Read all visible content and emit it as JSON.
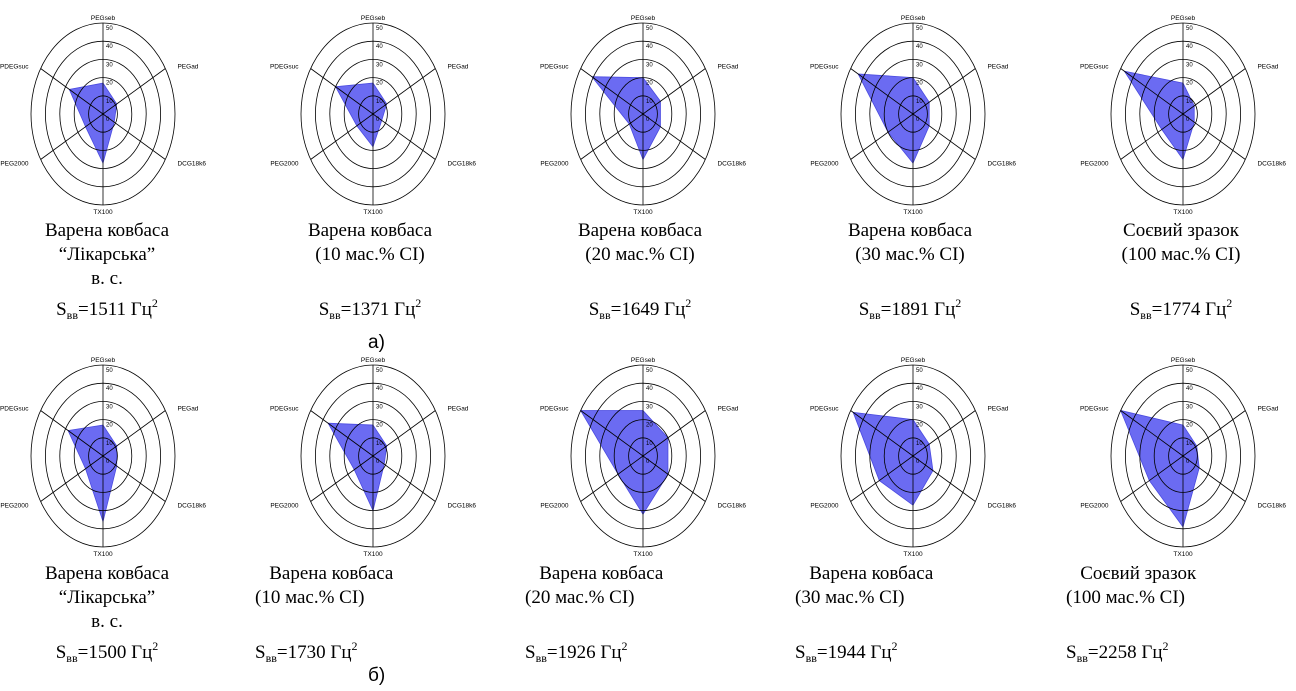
{
  "colors": {
    "fill": "#6b6bf2",
    "fill_stroke": "#4b4be0",
    "grid": "#000000"
  },
  "panels": [
    {
      "label": "а)"
    },
    {
      "label": "б)"
    }
  ],
  "chart_data": [
    {
      "type": "radar",
      "rmax": 50,
      "ticks": [
        "0",
        "10",
        "20",
        "30",
        "40",
        "50"
      ],
      "axes": [
        "PEGseb",
        "PEGad",
        "DCG18k6",
        "TX100",
        "PEG2000",
        "PDEGsuc"
      ],
      "values": [
        17,
        11,
        9,
        27,
        14,
        27
      ],
      "caption": [
        "Варена ковбаса",
        "“Лікарська”",
        "в. с."
      ],
      "s_value": "=1511 Гц",
      "s_sub": "вв",
      "s_sup": "2"
    },
    {
      "type": "radar",
      "rmax": 50,
      "ticks": [
        "0",
        "10",
        "20",
        "30",
        "40",
        "50"
      ],
      "axes": [
        "PEGseb",
        "PEGad",
        "DCG18k6",
        "TX100",
        "PEG2000",
        "PDEGsuc"
      ],
      "values": [
        17,
        11,
        7,
        18,
        13,
        30
      ],
      "caption": [
        "Варена ковбаса",
        "(10 мас.% СІ)"
      ],
      "s_value": "=1371 Гц",
      "s_sub": "вв",
      "s_sup": "2"
    },
    {
      "type": "radar",
      "rmax": 50,
      "ticks": [
        "0",
        "10",
        "20",
        "30",
        "40",
        "50"
      ],
      "axes": [
        "PEGseb",
        "PEGad",
        "DCG18k6",
        "TX100",
        "PEG2000",
        "PDEGsuc"
      ],
      "values": [
        20,
        14,
        14,
        25,
        11,
        41
      ],
      "caption": [
        "Варена ковбаса",
        "(20 мас.% СІ)"
      ],
      "s_value": "=1649 Гц",
      "s_sub": "вв",
      "s_sup": "2"
    },
    {
      "type": "radar",
      "rmax": 50,
      "ticks": [
        "0",
        "10",
        "20",
        "30",
        "40",
        "50"
      ],
      "axes": [
        "PEGseb",
        "PEGad",
        "DCG18k6",
        "TX100",
        "PEG2000",
        "PDEGsuc"
      ],
      "values": [
        20,
        13,
        13,
        27,
        20,
        44
      ],
      "caption": [
        "Варена ковбаса",
        "(30 мас.% СІ)"
      ],
      "s_value": "=1891 Гц",
      "s_sub": "вв",
      "s_sup": "2"
    },
    {
      "type": "radar",
      "rmax": 50,
      "ticks": [
        "0",
        "10",
        "20",
        "30",
        "40",
        "50"
      ],
      "axes": [
        "PEGseb",
        "PEGad",
        "DCG18k6",
        "TX100",
        "PEG2000",
        "PDEGsuc"
      ],
      "values": [
        17,
        9,
        9,
        25,
        17,
        47
      ],
      "caption": [
        "Соєвий зразок",
        "(100 мас.% СІ)"
      ],
      "s_value": "=1774 Гц",
      "s_sub": "вв",
      "s_sup": "2"
    },
    {
      "type": "radar",
      "rmax": 50,
      "ticks": [
        "0",
        "10",
        "20",
        "30",
        "40",
        "50"
      ],
      "axes": [
        "PEGseb",
        "PEGad",
        "DCG18k6",
        "TX100",
        "PEG2000",
        "PDEGsuc"
      ],
      "values": [
        17,
        11,
        11,
        36,
        14,
        28
      ],
      "caption": [
        "Варена ковбаса",
        "“Лікарська”",
        "в. с."
      ],
      "s_value": "=1500 Гц",
      "s_sub": "вв",
      "s_sup": "2"
    },
    {
      "type": "radar",
      "rmax": 50,
      "ticks": [
        "0",
        "10",
        "20",
        "30",
        "40",
        "50"
      ],
      "axes": [
        "PEGseb",
        "PEGad",
        "DCG18k6",
        "TX100",
        "PEG2000",
        "PDEGsuc"
      ],
      "values": [
        17,
        11,
        9,
        30,
        15,
        36
      ],
      "caption": [
        "   Варена ковбаса",
        "(10 мас.% СІ)"
      ],
      "s_value": "=1730 Гц",
      "s_sub": "вв",
      "s_sup": "2"
    },
    {
      "type": "radar",
      "rmax": 50,
      "ticks": [
        "0",
        "10",
        "20",
        "30",
        "40",
        "50"
      ],
      "axes": [
        "PEGseb",
        "PEGad",
        "DCG18k6",
        "TX100",
        "PEG2000",
        "PDEGsuc"
      ],
      "values": [
        25,
        20,
        20,
        32,
        20,
        50
      ],
      "caption": [
        "   Варена ковбаса",
        "(20 мас.% СІ)"
      ],
      "s_value": "=1926 Гц",
      "s_sub": "вв",
      "s_sup": "2"
    },
    {
      "type": "radar",
      "rmax": 50,
      "ticks": [
        "0",
        "10",
        "20",
        "30",
        "40",
        "50"
      ],
      "axes": [
        "PEGseb",
        "PEGad",
        "DCG18k6",
        "TX100",
        "PEG2000",
        "PDEGsuc"
      ],
      "values": [
        20,
        13,
        16,
        27,
        27,
        48
      ],
      "caption": [
        "   Варена ковбаса",
        "(30 мас.% СІ)"
      ],
      "s_value": "=1944 Гц",
      "s_sub": "вв",
      "s_sup": "2"
    },
    {
      "type": "radar",
      "rmax": 50,
      "ticks": [
        "0",
        "10",
        "20",
        "30",
        "40",
        "50"
      ],
      "axes": [
        "PEGseb",
        "PEGad",
        "DCG18k6",
        "TX100",
        "PEG2000",
        "PDEGsuc"
      ],
      "values": [
        17,
        11,
        13,
        39,
        27,
        50
      ],
      "caption": [
        "   Соєвий зразок",
        "(100 мас.% СІ)"
      ],
      "s_value": "=2258 Гц",
      "s_sub": "вв",
      "s_sup": "2"
    }
  ]
}
